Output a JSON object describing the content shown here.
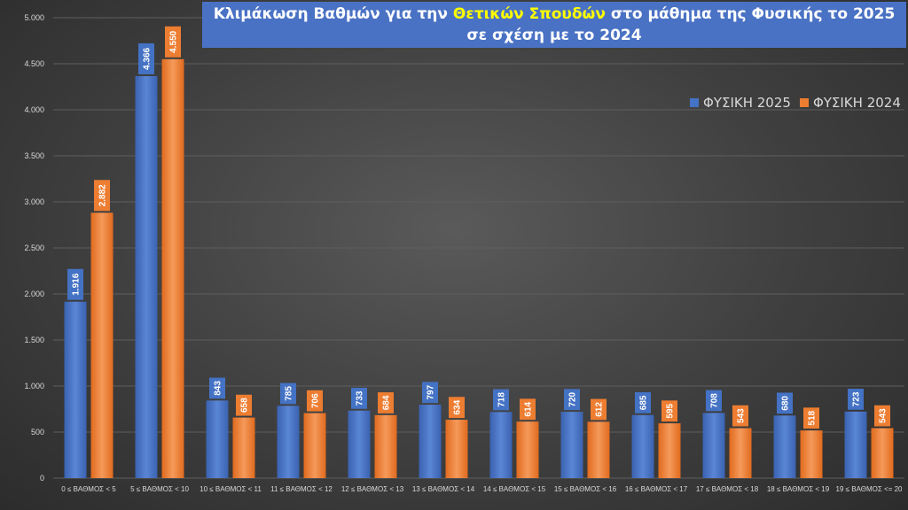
{
  "title": {
    "line1_prefix": "Κλιμάκωση Βαθμών για την ",
    "line1_highlight": "Θετικών Σπουδών",
    "line1_suffix": " στο μάθημα της Φυσικής το 2025",
    "line2": "σε σχέση με το 2024"
  },
  "colors": {
    "series_2025": "#4472c4",
    "series_2024": "#ed7d31",
    "title_bg": "#4a72c4",
    "title_highlight": "#ffff00"
  },
  "chart_data": {
    "type": "bar",
    "title": "Κλιμάκωση Βαθμών για την Θετικών Σπουδών στο μάθημα της Φυσικής το 2025 σε σχέση με το 2024",
    "categories": [
      "0 ≤ ΒΑΘΜΟΣ < 5",
      "5 ≤ ΒΑΘΜΟΣ < 10",
      "10 ≤ ΒΑΘΜΟΣ < 11",
      "11 ≤ ΒΑΘΜΟΣ < 12",
      "12 ≤ ΒΑΘΜΟΣ < 13",
      "13 ≤ ΒΑΘΜΟΣ < 14",
      "14 ≤ ΒΑΘΜΟΣ < 15",
      "15 ≤ ΒΑΘΜΟΣ < 16",
      "16 ≤ ΒΑΘΜΟΣ < 17",
      "17 ≤ ΒΑΘΜΟΣ < 18",
      "18 ≤ ΒΑΘΜΟΣ < 19",
      "19 ≤ ΒΑΘΜΟΣ <= 20"
    ],
    "series": [
      {
        "name": "ΦΥΣΙΚΗ 2025",
        "values": [
          1916,
          4366,
          843,
          785,
          733,
          797,
          718,
          720,
          685,
          708,
          680,
          723
        ],
        "labels": [
          "1.916",
          "4.366",
          "843",
          "785",
          "733",
          "797",
          "718",
          "720",
          "685",
          "708",
          "680",
          "723"
        ]
      },
      {
        "name": "ΦΥΣΙΚΗ 2024",
        "values": [
          2882,
          4550,
          658,
          706,
          684,
          634,
          614,
          612,
          595,
          543,
          518,
          543
        ],
        "labels": [
          "2.882",
          "4.550",
          "658",
          "706",
          "684",
          "634",
          "614",
          "612",
          "595",
          "543",
          "518",
          "543"
        ]
      }
    ],
    "ylim": [
      0,
      5000
    ],
    "yticks": [
      {
        "value": 0,
        "label": "0"
      },
      {
        "value": 500,
        "label": "500"
      },
      {
        "value": 1000,
        "label": "1.000"
      },
      {
        "value": 1500,
        "label": "1.500"
      },
      {
        "value": 2000,
        "label": "2.000"
      },
      {
        "value": 2500,
        "label": "2.500"
      },
      {
        "value": 3000,
        "label": "3.000"
      },
      {
        "value": 3500,
        "label": "3.500"
      },
      {
        "value": 4000,
        "label": "4.000"
      },
      {
        "value": 4500,
        "label": "4.500"
      },
      {
        "value": 5000,
        "label": "5.000"
      }
    ],
    "grid": true,
    "legend_position": "top-right"
  }
}
